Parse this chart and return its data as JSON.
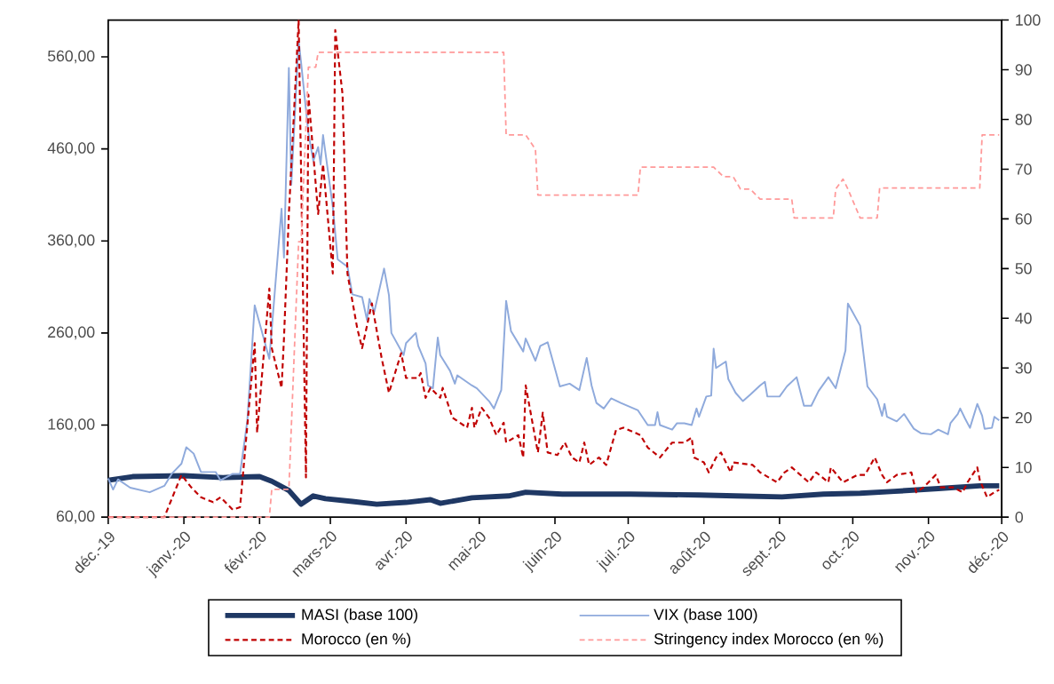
{
  "chart_data": {
    "type": "line",
    "xlim": [
      "2019-12-01",
      "2020-12-01"
    ],
    "xticks": [
      {
        "value": "2019-12-01",
        "label": "déc.-19"
      },
      {
        "value": "2020-01-01",
        "label": "janv.-20"
      },
      {
        "value": "2020-02-01",
        "label": "févr.-20"
      },
      {
        "value": "2020-03-01",
        "label": "mars-20"
      },
      {
        "value": "2020-04-01",
        "label": "avr.-20"
      },
      {
        "value": "2020-05-01",
        "label": "mai-20"
      },
      {
        "value": "2020-06-01",
        "label": "juin-20"
      },
      {
        "value": "2020-07-01",
        "label": "juil.-20"
      },
      {
        "value": "2020-08-01",
        "label": "août-20"
      },
      {
        "value": "2020-09-01",
        "label": "sept.-20"
      },
      {
        "value": "2020-10-01",
        "label": "oct.-20"
      },
      {
        "value": "2020-11-01",
        "label": "nov.-20"
      },
      {
        "value": "2020-12-01",
        "label": "déc.-20"
      }
    ],
    "ylim": [
      60,
      600
    ],
    "yticks": [
      {
        "value": 60,
        "label": "60,00"
      },
      {
        "value": 160,
        "label": "160,00"
      },
      {
        "value": 260,
        "label": "260,00"
      },
      {
        "value": 360,
        "label": "360,00"
      },
      {
        "value": 460,
        "label": "460,00"
      },
      {
        "value": 560,
        "label": "560,00"
      }
    ],
    "y2lim": [
      0,
      100
    ],
    "y2ticks": [
      0,
      10,
      20,
      30,
      40,
      50,
      60,
      70,
      80,
      90,
      100
    ],
    "legend": "bottom",
    "marker": "none",
    "series": [
      {
        "name": "MASI (base 100)",
        "color": "#1f3864",
        "line_style": "solid",
        "x": [
          "2019-12-01",
          "2019-12-11",
          "2020-01-01",
          "2020-01-17",
          "2020-02-01",
          "2020-02-06",
          "2020-02-13",
          "2020-02-18",
          "2020-02-23",
          "2020-02-28",
          "2020-03-10",
          "2020-03-20",
          "2020-04-01",
          "2020-04-11",
          "2020-04-15",
          "2020-04-28",
          "2020-05-13",
          "2020-05-20",
          "2020-06-04",
          "2020-07-02",
          "2020-07-30",
          "2020-08-14",
          "2020-09-02",
          "2020-09-19",
          "2020-10-04",
          "2020-10-18",
          "2020-11-05",
          "2020-11-22",
          "2020-11-30"
        ],
        "values": [
          100,
          104,
          105,
          103,
          104,
          99,
          89,
          74,
          83,
          80,
          77,
          74,
          76,
          79,
          75,
          81,
          83,
          87,
          85,
          85,
          84,
          83,
          82,
          85,
          86,
          88,
          91,
          94,
          94
        ]
      },
      {
        "name": "VIX (base 100)",
        "color": "#8faadc",
        "line_style": "solid",
        "x": [
          "2019-12-01",
          "2019-12-03",
          "2019-12-05",
          "2019-12-10",
          "2019-12-18",
          "2019-12-24",
          "2019-12-27",
          "2019-12-31",
          "2020-01-02",
          "2020-01-05",
          "2020-01-08",
          "2020-01-14",
          "2020-01-16",
          "2020-01-21",
          "2020-01-24",
          "2020-01-27",
          "2020-01-30",
          "2020-02-05",
          "2020-02-10",
          "2020-02-11",
          "2020-02-13",
          "2020-02-14",
          "2020-02-17",
          "2020-02-18",
          "2020-02-21",
          "2020-02-23",
          "2020-02-25",
          "2020-02-26",
          "2020-02-27",
          "2020-03-02",
          "2020-03-04",
          "2020-03-08",
          "2020-03-10",
          "2020-03-14",
          "2020-03-16",
          "2020-03-17",
          "2020-03-19",
          "2020-03-23",
          "2020-03-25",
          "2020-03-26",
          "2020-03-31",
          "2020-04-01",
          "2020-04-05",
          "2020-04-06",
          "2020-04-09",
          "2020-04-10",
          "2020-04-12",
          "2020-04-14",
          "2020-04-15",
          "2020-04-19",
          "2020-04-21",
          "2020-04-22",
          "2020-04-28",
          "2020-04-30",
          "2020-05-05",
          "2020-05-07",
          "2020-05-10",
          "2020-05-12",
          "2020-05-14",
          "2020-05-19",
          "2020-05-20",
          "2020-05-24",
          "2020-05-26",
          "2020-05-29",
          "2020-05-31",
          "2020-06-03",
          "2020-06-07",
          "2020-06-11",
          "2020-06-14",
          "2020-06-16",
          "2020-06-18",
          "2020-06-21",
          "2020-06-24",
          "2020-06-28",
          "2020-07-05",
          "2020-07-09",
          "2020-07-12",
          "2020-07-13",
          "2020-07-14",
          "2020-07-19",
          "2020-07-21",
          "2020-07-24",
          "2020-07-27",
          "2020-07-29",
          "2020-07-30",
          "2020-08-02",
          "2020-08-04",
          "2020-08-05",
          "2020-08-06",
          "2020-08-10",
          "2020-08-11",
          "2020-08-14",
          "2020-08-17",
          "2020-08-20",
          "2020-08-24",
          "2020-08-26",
          "2020-08-27",
          "2020-09-01",
          "2020-09-04",
          "2020-09-08",
          "2020-09-11",
          "2020-09-14",
          "2020-09-17",
          "2020-09-21",
          "2020-09-24",
          "2020-09-28",
          "2020-09-29",
          "2020-10-04",
          "2020-10-07",
          "2020-10-11",
          "2020-10-13",
          "2020-10-14",
          "2020-10-15",
          "2020-10-19",
          "2020-10-22",
          "2020-10-26",
          "2020-10-29",
          "2020-11-02",
          "2020-11-05",
          "2020-11-09",
          "2020-11-10",
          "2020-11-13",
          "2020-11-14",
          "2020-11-16",
          "2020-11-18",
          "2020-11-21",
          "2020-11-23",
          "2020-11-24",
          "2020-11-27",
          "2020-11-28",
          "2020-11-30"
        ],
        "values": [
          102,
          90,
          101,
          92,
          87,
          94,
          107,
          118,
          136,
          129,
          109,
          109,
          100,
          107,
          107,
          165,
          290,
          232,
          395,
          342,
          548,
          421,
          578,
          554,
          477,
          447,
          462,
          443,
          475,
          397,
          340,
          332,
          302,
          299,
          274,
          297,
          283,
          330,
          301,
          260,
          236,
          249,
          260,
          246,
          227,
          203,
          200,
          255,
          236,
          219,
          205,
          214,
          203,
          200,
          186,
          178,
          198,
          295,
          262,
          240,
          254,
          230,
          246,
          250,
          231,
          202,
          205,
          198,
          233,
          203,
          184,
          178,
          189,
          184,
          176,
          160,
          160,
          174,
          160,
          155,
          162,
          162,
          160,
          178,
          169,
          191,
          192,
          243,
          222,
          229,
          210,
          195,
          186,
          193,
          203,
          207,
          191,
          191,
          202,
          212,
          181,
          181,
          197,
          212,
          200,
          241,
          292,
          268,
          202,
          188,
          170,
          183,
          169,
          164,
          172,
          156,
          151,
          150,
          155,
          150,
          162,
          172,
          178,
          167,
          157,
          183,
          170,
          156,
          157,
          169,
          165
        ]
      },
      {
        "name": "Morocco (en %)",
        "color": "#c00000",
        "line_style": "dashed",
        "axis": "y2",
        "x": [
          "2019-12-01",
          "2019-12-24",
          "2019-12-31",
          "2020-01-04",
          "2020-01-08",
          "2020-01-13",
          "2020-01-16",
          "2020-01-21",
          "2020-01-24",
          "2020-01-30",
          "2020-01-31",
          "2020-02-05",
          "2020-02-06",
          "2020-02-10",
          "2020-02-11",
          "2020-02-13",
          "2020-02-17",
          "2020-02-20",
          "2020-02-21",
          "2020-02-25",
          "2020-02-27",
          "2020-03-02",
          "2020-03-03",
          "2020-03-06",
          "2020-03-08",
          "2020-03-12",
          "2020-03-14",
          "2020-03-18",
          "2020-03-22",
          "2020-03-25",
          "2020-03-30",
          "2020-04-01",
          "2020-04-06",
          "2020-04-07",
          "2020-04-09",
          "2020-04-11",
          "2020-04-15",
          "2020-04-16",
          "2020-04-20",
          "2020-04-26",
          "2020-04-28",
          "2020-04-29",
          "2020-05-02",
          "2020-05-05",
          "2020-05-08",
          "2020-05-11",
          "2020-05-12",
          "2020-05-17",
          "2020-05-19",
          "2020-05-20",
          "2020-05-25",
          "2020-05-27",
          "2020-05-29",
          "2020-06-02",
          "2020-06-05",
          "2020-06-08",
          "2020-06-11",
          "2020-06-13",
          "2020-06-15",
          "2020-06-19",
          "2020-06-22",
          "2020-06-26",
          "2020-06-29",
          "2020-07-06",
          "2020-07-09",
          "2020-07-14",
          "2020-07-19",
          "2020-07-24",
          "2020-07-27",
          "2020-07-28",
          "2020-08-01",
          "2020-08-03",
          "2020-08-06",
          "2020-08-08",
          "2020-08-12",
          "2020-08-13",
          "2020-08-21",
          "2020-08-24",
          "2020-08-31",
          "2020-09-03",
          "2020-09-06",
          "2020-09-13",
          "2020-09-16",
          "2020-09-21",
          "2020-09-22",
          "2020-09-27",
          "2020-10-03",
          "2020-10-06",
          "2020-10-10",
          "2020-10-13",
          "2020-10-15",
          "2020-10-19",
          "2020-10-25",
          "2020-10-27",
          "2020-10-30",
          "2020-11-04",
          "2020-11-06",
          "2020-11-11",
          "2020-11-15",
          "2020-11-17",
          "2020-11-21",
          "2020-11-22",
          "2020-11-25",
          "2020-11-28",
          "2020-11-30"
        ],
        "values": [
          0,
          0,
          8.5,
          6,
          4,
          3,
          4,
          1.5,
          2,
          35,
          17,
          46,
          34,
          26,
          36,
          61,
          100,
          8,
          85,
          61,
          71,
          49,
          98,
          85,
          49,
          38,
          34,
          43,
          32,
          25,
          33,
          28,
          28,
          29,
          24,
          26,
          24,
          26,
          20,
          18,
          22,
          18,
          22,
          20,
          16.5,
          19,
          15,
          16.5,
          12,
          26.5,
          13,
          21,
          13,
          12.5,
          15,
          12,
          11,
          15,
          10.5,
          12,
          10.5,
          17.5,
          18,
          16.5,
          14,
          12,
          15,
          15,
          16,
          12,
          11,
          9,
          12,
          13,
          9,
          11,
          10.5,
          9,
          7,
          9,
          10,
          7,
          9,
          7,
          10,
          7,
          8.5,
          8.5,
          12,
          8.5,
          7,
          8.5,
          9,
          5,
          6,
          8.5,
          6,
          6,
          5,
          7,
          10,
          7.5,
          4,
          5,
          5.5
        ]
      },
      {
        "name": "Stringency index Morocco (en %)",
        "color": "#ff9999",
        "line_style": "dashed",
        "axis": "y2",
        "x": [
          "2019-12-01",
          "2020-02-05",
          "2020-02-06",
          "2020-02-13",
          "2020-02-17",
          "2020-02-18",
          "2020-02-21",
          "2020-02-24",
          "2020-02-25",
          "2020-05-11",
          "2020-05-12",
          "2020-05-20",
          "2020-05-24",
          "2020-05-25",
          "2020-07-05",
          "2020-07-06",
          "2020-08-05",
          "2020-08-09",
          "2020-08-13",
          "2020-08-16",
          "2020-08-20",
          "2020-08-24",
          "2020-09-06",
          "2020-09-07",
          "2020-09-23",
          "2020-09-24",
          "2020-09-27",
          "2020-09-29",
          "2020-10-04",
          "2020-10-11",
          "2020-10-12",
          "2020-11-22",
          "2020-11-23",
          "2020-11-30"
        ],
        "values": [
          0,
          0,
          5.6,
          5.6,
          55.4,
          55.4,
          90.5,
          90.5,
          93.5,
          93.5,
          76.9,
          76.9,
          74,
          64.8,
          64.8,
          70.4,
          70.4,
          68.5,
          68.5,
          66,
          66,
          64,
          64,
          60.2,
          60.2,
          66,
          68,
          66,
          60.2,
          60.2,
          66.2,
          66.2,
          76.9,
          76.9
        ]
      }
    ]
  }
}
